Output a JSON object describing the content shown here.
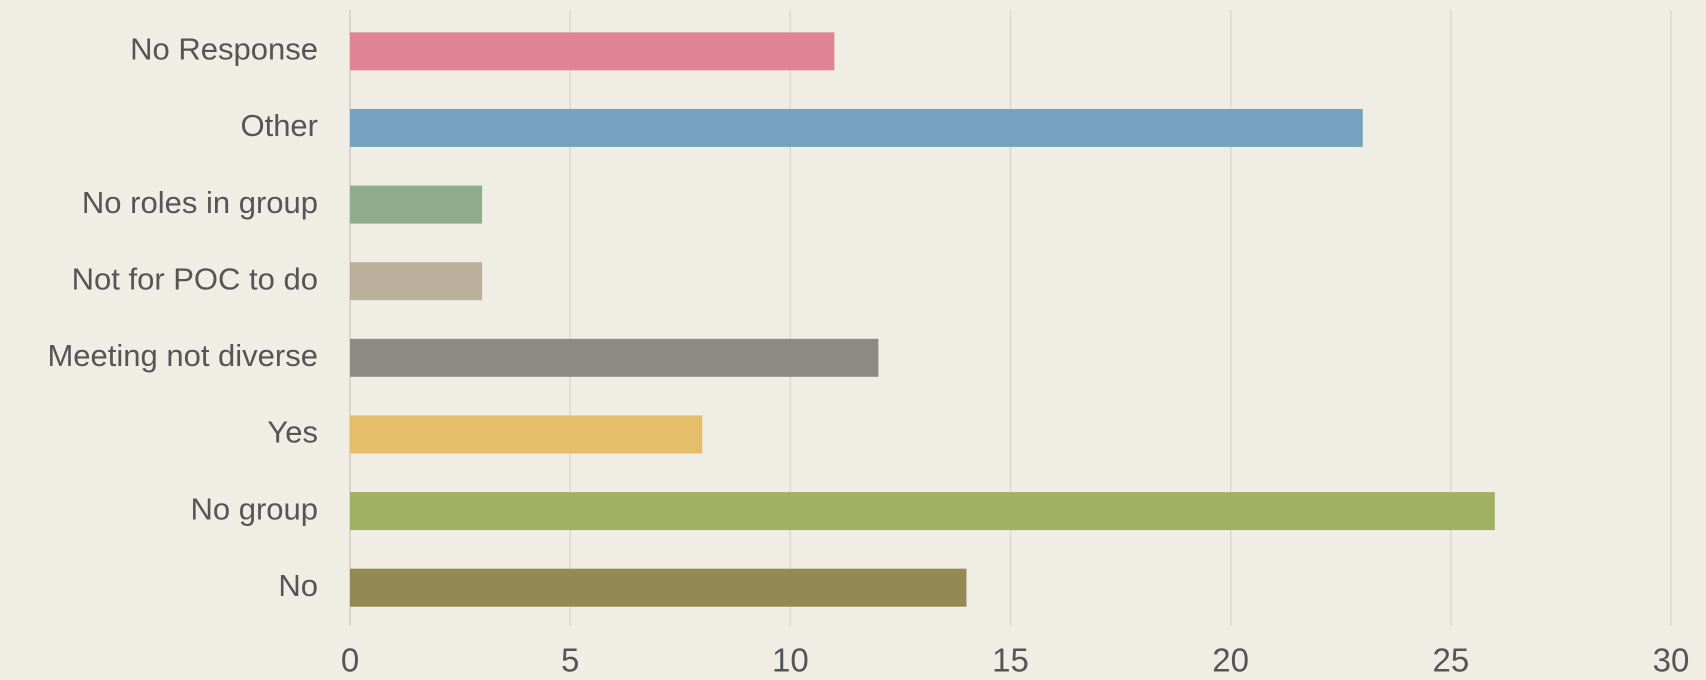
{
  "chart_data": {
    "type": "barh",
    "categories": [
      "No Response",
      "Other",
      "No roles in group",
      "Not for POC to do",
      "Meeting not diverse",
      "Yes",
      "No group",
      "No"
    ],
    "values": [
      11,
      23,
      3,
      3,
      12,
      8,
      26,
      14
    ],
    "colors": [
      "#e08494",
      "#75a3bf",
      "#8fad8b",
      "#bab09c",
      "#8b8b84",
      "#e6be6a",
      "#a2b064",
      "#928a52"
    ],
    "xlim": [
      0,
      30
    ],
    "xticks": [
      0,
      5,
      10,
      15,
      20,
      25,
      30
    ],
    "grid": true
  }
}
